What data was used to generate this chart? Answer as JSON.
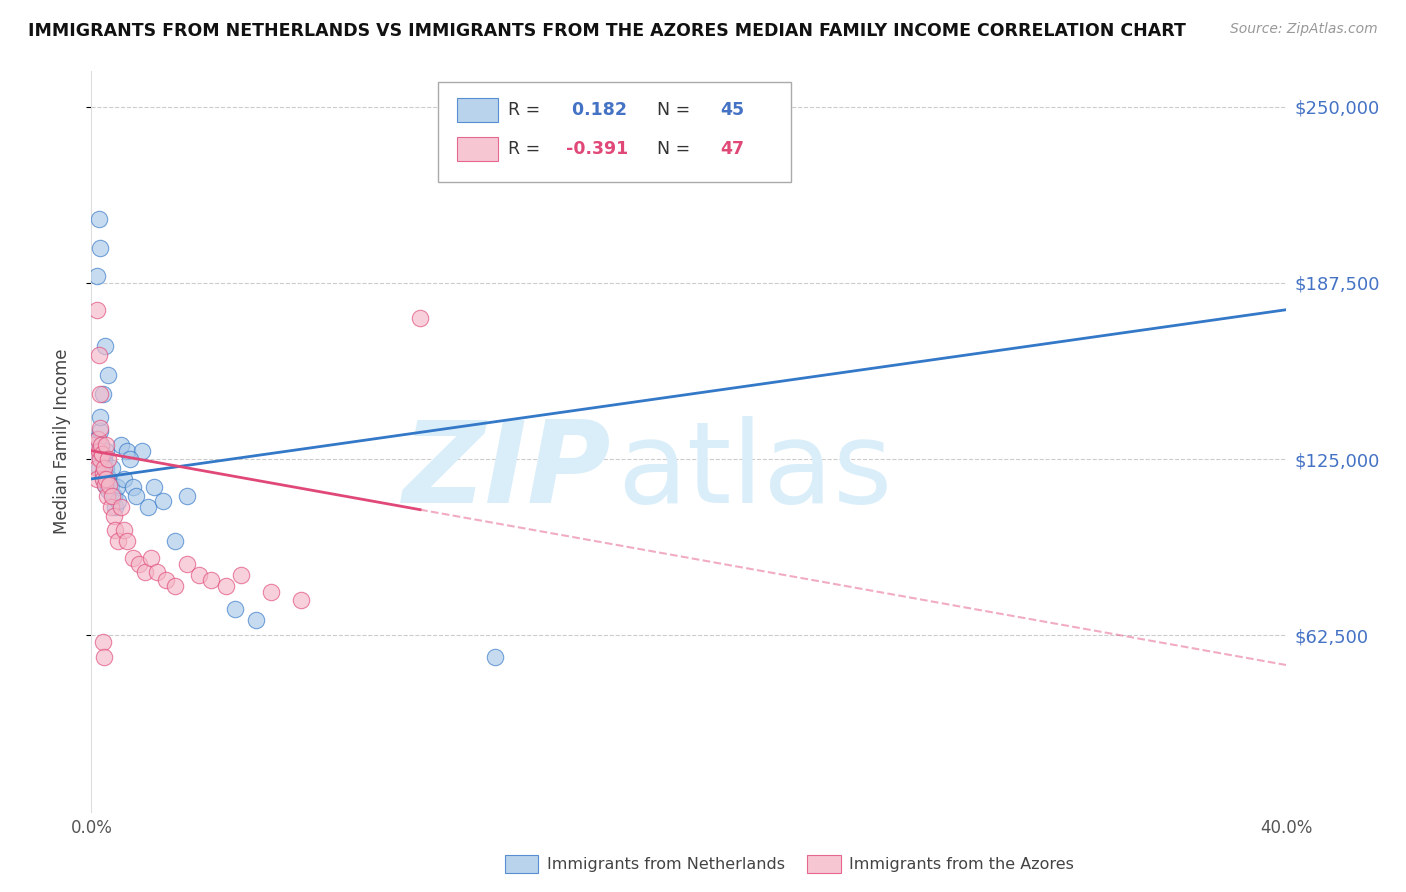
{
  "title": "IMMIGRANTS FROM NETHERLANDS VS IMMIGRANTS FROM THE AZORES MEDIAN FAMILY INCOME CORRELATION CHART",
  "source": "Source: ZipAtlas.com",
  "ylabel": "Median Family Income",
  "xlim": [
    0.0,
    40.0
  ],
  "ylim": [
    0,
    262500
  ],
  "yticks": [
    62500,
    125000,
    187500,
    250000
  ],
  "ytick_labels": [
    "$62,500",
    "$125,000",
    "$187,500",
    "$250,000"
  ],
  "legend_label1": "Immigrants from Netherlands",
  "legend_label2": "Immigrants from the Azores",
  "R1": 0.182,
  "N1": 45,
  "R2": -0.391,
  "N2": 47,
  "color_blue": "#a8c8e8",
  "color_pink": "#f4b8c8",
  "color_line_blue": "#3478c8",
  "color_line_pink": "#e04878",
  "watermark_color": "#daeefa",
  "blue_trend": [
    0,
    40,
    118000,
    178000
  ],
  "pink_solid_end": 11.0,
  "pink_trend": [
    0,
    40,
    128000,
    52000
  ],
  "blue_x": [
    0.15,
    0.18,
    0.22,
    0.25,
    0.28,
    0.3,
    0.32,
    0.35,
    0.38,
    0.4,
    0.42,
    0.45,
    0.48,
    0.5,
    0.52,
    0.55,
    0.6,
    0.65,
    0.7,
    0.75,
    0.8,
    0.85,
    0.9,
    1.0,
    1.1,
    1.2,
    1.4,
    1.5,
    1.7,
    1.9,
    2.1,
    2.4,
    2.8,
    3.2,
    1.3,
    0.2,
    0.25,
    0.3,
    0.45,
    0.55,
    4.8,
    5.5,
    13.5,
    16.5,
    0.38
  ],
  "blue_y": [
    128000,
    132000,
    127000,
    122000,
    135000,
    140000,
    130000,
    126000,
    120000,
    118000,
    125000,
    116000,
    128000,
    122000,
    119000,
    114000,
    118000,
    116000,
    122000,
    112000,
    108000,
    115000,
    110000,
    130000,
    118000,
    128000,
    115000,
    112000,
    128000,
    108000,
    115000,
    110000,
    96000,
    112000,
    125000,
    190000,
    210000,
    200000,
    165000,
    155000,
    72000,
    68000,
    55000,
    238000,
    148000
  ],
  "pink_x": [
    0.1,
    0.15,
    0.18,
    0.2,
    0.22,
    0.25,
    0.28,
    0.3,
    0.32,
    0.35,
    0.38,
    0.4,
    0.42,
    0.45,
    0.48,
    0.5,
    0.52,
    0.55,
    0.6,
    0.65,
    0.7,
    0.75,
    0.8,
    0.9,
    1.0,
    1.1,
    1.2,
    1.4,
    1.6,
    1.8,
    2.0,
    2.2,
    2.5,
    2.8,
    3.2,
    3.6,
    4.0,
    4.5,
    5.0,
    6.0,
    7.0,
    0.2,
    0.25,
    0.3,
    0.38,
    0.42,
    11.0
  ],
  "pink_y": [
    130000,
    126000,
    122000,
    118000,
    132000,
    128000,
    125000,
    136000,
    130000,
    127000,
    120000,
    118000,
    122000,
    116000,
    130000,
    118000,
    112000,
    125000,
    116000,
    108000,
    112000,
    105000,
    100000,
    96000,
    108000,
    100000,
    96000,
    90000,
    88000,
    85000,
    90000,
    85000,
    82000,
    80000,
    88000,
    84000,
    82000,
    80000,
    84000,
    78000,
    75000,
    178000,
    162000,
    148000,
    60000,
    55000,
    175000
  ]
}
